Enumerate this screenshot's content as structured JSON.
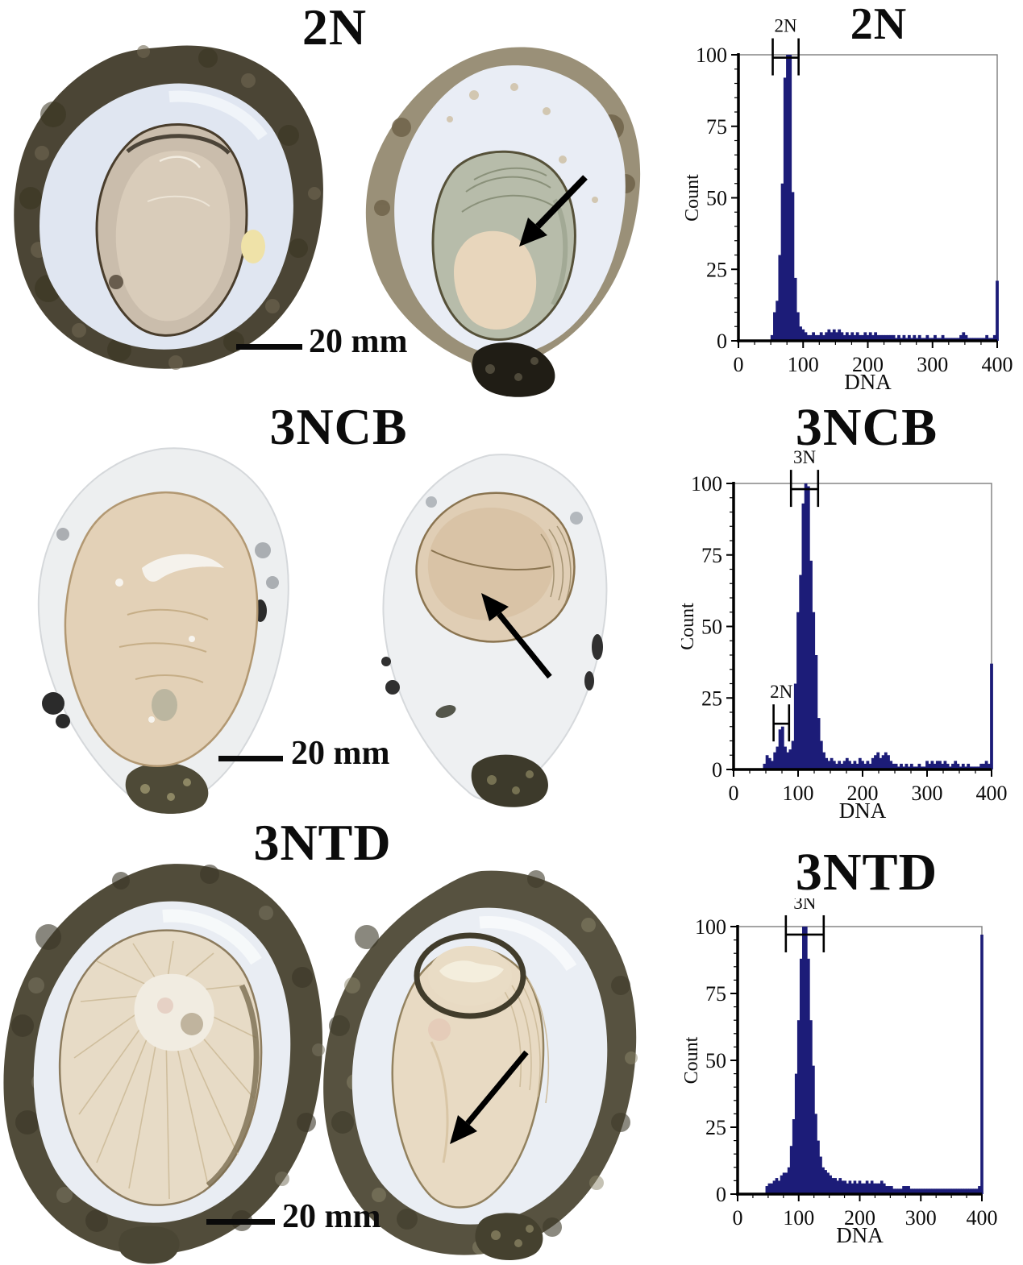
{
  "figure": {
    "background": "#ffffff",
    "bar_color": "#1c1c78",
    "rows": [
      {
        "group_label": "2N",
        "chart_title": "2N",
        "scale_bar": "20 mm"
      },
      {
        "group_label": "3NCB",
        "chart_title": "3NCB",
        "scale_bar": "20 mm"
      },
      {
        "group_label": "3NTD",
        "chart_title": "3NTD",
        "scale_bar": "20 mm"
      }
    ]
  },
  "chart_data": [
    {
      "type": "bar",
      "title": "2N",
      "xlabel": "DNA",
      "ylabel": "Count",
      "xlim": [
        0,
        400
      ],
      "ylim": [
        0,
        100
      ],
      "xticks": [
        0,
        100,
        200,
        300,
        400
      ],
      "yticks": [
        0,
        25,
        50,
        75,
        100
      ],
      "grid": false,
      "bin_width": 4,
      "gates": [
        {
          "label": "2N",
          "from": 53,
          "to": 93,
          "at": 99
        }
      ],
      "counts": [
        0,
        0,
        0,
        0,
        0,
        0,
        0,
        0,
        0,
        0,
        0,
        0,
        0,
        2,
        10,
        14,
        30,
        55,
        92,
        100,
        100,
        52,
        22,
        10,
        5,
        4,
        3,
        2,
        2,
        3,
        2,
        2,
        3,
        2,
        3,
        4,
        3,
        4,
        3,
        4,
        3,
        2,
        3,
        2,
        3,
        2,
        3,
        2,
        2,
        3,
        2,
        3,
        2,
        3,
        2,
        2,
        2,
        2,
        2,
        2,
        2,
        1,
        2,
        1,
        2,
        1,
        2,
        1,
        2,
        1,
        2,
        1,
        1,
        2,
        1,
        1,
        2,
        1,
        1,
        2,
        1,
        1,
        1,
        1,
        1,
        1,
        2,
        3,
        2,
        1,
        1,
        1,
        1,
        1,
        1,
        1,
        2,
        1,
        1,
        2,
        21
      ]
    },
    {
      "type": "bar",
      "title": "3NCB",
      "xlabel": "DNA",
      "ylabel": "Count",
      "xlim": [
        0,
        400
      ],
      "ylim": [
        0,
        100
      ],
      "xticks": [
        0,
        100,
        200,
        300,
        400
      ],
      "yticks": [
        0,
        25,
        50,
        75,
        100
      ],
      "grid": false,
      "bin_width": 4,
      "gates": [
        {
          "label": "3N",
          "from": 89,
          "to": 131,
          "at": 98
        },
        {
          "label": "2N",
          "from": 62,
          "to": 86,
          "at": 16
        }
      ],
      "counts": [
        0,
        0,
        0,
        0,
        0,
        0,
        0,
        0,
        0,
        0,
        0,
        0,
        2,
        5,
        4,
        3,
        6,
        8,
        14,
        15,
        8,
        6,
        7,
        10,
        30,
        55,
        68,
        93,
        100,
        99,
        73,
        55,
        40,
        18,
        10,
        6,
        4,
        3,
        4,
        3,
        2,
        3,
        2,
        3,
        4,
        3,
        2,
        3,
        2,
        4,
        3,
        2,
        3,
        2,
        4,
        5,
        6,
        4,
        5,
        6,
        5,
        3,
        2,
        2,
        1,
        2,
        1,
        2,
        1,
        2,
        1,
        1,
        2,
        1,
        1,
        3,
        2,
        3,
        2,
        3,
        3,
        2,
        3,
        2,
        1,
        2,
        3,
        2,
        1,
        2,
        1,
        2,
        1,
        1,
        1,
        1,
        2,
        2,
        3,
        2,
        37
      ]
    },
    {
      "type": "bar",
      "title": "3NTD",
      "xlabel": "DNA",
      "ylabel": "Count",
      "xlim": [
        0,
        400
      ],
      "ylim": [
        0,
        100
      ],
      "xticks": [
        0,
        100,
        200,
        300,
        400
      ],
      "yticks": [
        0,
        25,
        50,
        75,
        100
      ],
      "grid": false,
      "bin_width": 4,
      "gates": [
        {
          "label": "3N",
          "from": 79,
          "to": 141,
          "at": 97
        }
      ],
      "counts": [
        0,
        0,
        0,
        0,
        0,
        0,
        0,
        0,
        0,
        0,
        0,
        0,
        3,
        4,
        4,
        5,
        6,
        5,
        7,
        8,
        8,
        10,
        18,
        28,
        45,
        65,
        88,
        100,
        100,
        88,
        65,
        48,
        30,
        20,
        14,
        10,
        9,
        8,
        7,
        6,
        6,
        5,
        6,
        5,
        5,
        4,
        5,
        4,
        5,
        4,
        5,
        4,
        4,
        5,
        4,
        5,
        4,
        4,
        4,
        5,
        4,
        3,
        3,
        3,
        2,
        2,
        2,
        2,
        3,
        3,
        3,
        2,
        2,
        2,
        2,
        2,
        2,
        2,
        2,
        2,
        2,
        2,
        2,
        2,
        2,
        2,
        2,
        2,
        2,
        2,
        2,
        2,
        2,
        2,
        2,
        2,
        2,
        2,
        2,
        3,
        97
      ]
    }
  ]
}
